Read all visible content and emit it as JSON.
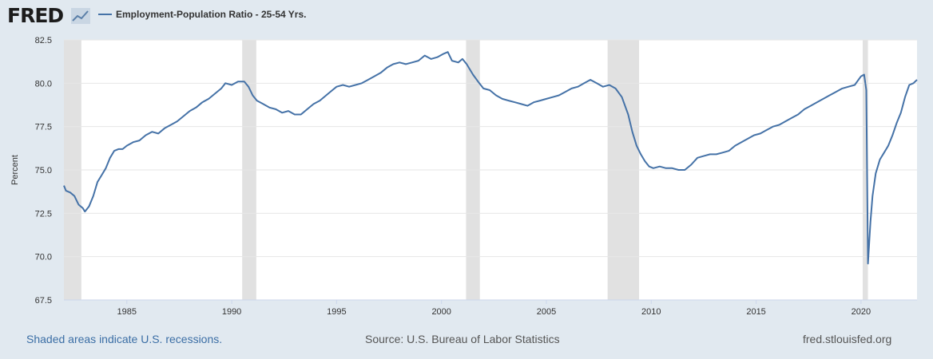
{
  "header": {
    "logo_text": "FRED",
    "legend_label": "Employment-Population Ratio - 25-54 Yrs."
  },
  "footer": {
    "recession_note": "Shaded areas indicate U.S. recessions.",
    "source": "Source: U.S. Bureau of Labor Statistics",
    "site": "fred.stlouisfed.org"
  },
  "colors": {
    "series": "#4572a7",
    "recession": "#e1e1e1",
    "background": "#e1e9f0",
    "plot": "#ffffff",
    "grid": "#e6e6e6"
  },
  "chart_data": {
    "type": "line",
    "title": "",
    "xlabel": "",
    "ylabel": "Percent",
    "xlim": [
      1982.0,
      2022.67
    ],
    "ylim": [
      67.5,
      82.5
    ],
    "x_ticks": [
      1985,
      1990,
      1995,
      2000,
      2005,
      2010,
      2015,
      2020
    ],
    "y_ticks": [
      67.5,
      70.0,
      72.5,
      75.0,
      77.5,
      80.0,
      82.5
    ],
    "grid": true,
    "legend": "top-left",
    "recessions": [
      [
        1982.0,
        1982.83
      ],
      [
        1990.5,
        1991.17
      ],
      [
        2001.17,
        2001.83
      ],
      [
        2007.92,
        2009.42
      ],
      [
        2020.08,
        2020.33
      ]
    ],
    "series": [
      {
        "name": "Employment-Population Ratio - 25-54 Yrs.",
        "points": [
          [
            1982.0,
            74.1
          ],
          [
            1982.1,
            73.8
          ],
          [
            1982.3,
            73.7
          ],
          [
            1982.5,
            73.5
          ],
          [
            1982.7,
            73.0
          ],
          [
            1982.9,
            72.8
          ],
          [
            1983.0,
            72.6
          ],
          [
            1983.2,
            72.9
          ],
          [
            1983.4,
            73.5
          ],
          [
            1983.6,
            74.3
          ],
          [
            1983.8,
            74.7
          ],
          [
            1984.0,
            75.1
          ],
          [
            1984.2,
            75.7
          ],
          [
            1984.4,
            76.1
          ],
          [
            1984.6,
            76.2
          ],
          [
            1984.8,
            76.2
          ],
          [
            1985.0,
            76.4
          ],
          [
            1985.3,
            76.6
          ],
          [
            1985.6,
            76.7
          ],
          [
            1985.9,
            77.0
          ],
          [
            1986.2,
            77.2
          ],
          [
            1986.5,
            77.1
          ],
          [
            1986.8,
            77.4
          ],
          [
            1987.1,
            77.6
          ],
          [
            1987.4,
            77.8
          ],
          [
            1987.7,
            78.1
          ],
          [
            1988.0,
            78.4
          ],
          [
            1988.3,
            78.6
          ],
          [
            1988.6,
            78.9
          ],
          [
            1988.9,
            79.1
          ],
          [
            1989.2,
            79.4
          ],
          [
            1989.5,
            79.7
          ],
          [
            1989.7,
            80.0
          ],
          [
            1990.0,
            79.9
          ],
          [
            1990.3,
            80.1
          ],
          [
            1990.6,
            80.1
          ],
          [
            1990.8,
            79.8
          ],
          [
            1991.0,
            79.3
          ],
          [
            1991.2,
            79.0
          ],
          [
            1991.5,
            78.8
          ],
          [
            1991.8,
            78.6
          ],
          [
            1992.1,
            78.5
          ],
          [
            1992.4,
            78.3
          ],
          [
            1992.7,
            78.4
          ],
          [
            1993.0,
            78.2
          ],
          [
            1993.3,
            78.2
          ],
          [
            1993.6,
            78.5
          ],
          [
            1993.9,
            78.8
          ],
          [
            1994.2,
            79.0
          ],
          [
            1994.5,
            79.3
          ],
          [
            1994.8,
            79.6
          ],
          [
            1995.0,
            79.8
          ],
          [
            1995.3,
            79.9
          ],
          [
            1995.6,
            79.8
          ],
          [
            1995.9,
            79.9
          ],
          [
            1996.2,
            80.0
          ],
          [
            1996.5,
            80.2
          ],
          [
            1996.8,
            80.4
          ],
          [
            1997.1,
            80.6
          ],
          [
            1997.4,
            80.9
          ],
          [
            1997.7,
            81.1
          ],
          [
            1998.0,
            81.2
          ],
          [
            1998.3,
            81.1
          ],
          [
            1998.6,
            81.2
          ],
          [
            1998.9,
            81.3
          ],
          [
            1999.2,
            81.6
          ],
          [
            1999.5,
            81.4
          ],
          [
            1999.8,
            81.5
          ],
          [
            2000.1,
            81.7
          ],
          [
            2000.3,
            81.8
          ],
          [
            2000.5,
            81.3
          ],
          [
            2000.8,
            81.2
          ],
          [
            2001.0,
            81.4
          ],
          [
            2001.2,
            81.1
          ],
          [
            2001.5,
            80.5
          ],
          [
            2001.8,
            80.0
          ],
          [
            2002.0,
            79.7
          ],
          [
            2002.3,
            79.6
          ],
          [
            2002.6,
            79.3
          ],
          [
            2002.9,
            79.1
          ],
          [
            2003.2,
            79.0
          ],
          [
            2003.5,
            78.9
          ],
          [
            2003.8,
            78.8
          ],
          [
            2004.1,
            78.7
          ],
          [
            2004.4,
            78.9
          ],
          [
            2004.7,
            79.0
          ],
          [
            2005.0,
            79.1
          ],
          [
            2005.3,
            79.2
          ],
          [
            2005.6,
            79.3
          ],
          [
            2005.9,
            79.5
          ],
          [
            2006.2,
            79.7
          ],
          [
            2006.5,
            79.8
          ],
          [
            2006.8,
            80.0
          ],
          [
            2007.1,
            80.2
          ],
          [
            2007.4,
            80.0
          ],
          [
            2007.7,
            79.8
          ],
          [
            2008.0,
            79.9
          ],
          [
            2008.3,
            79.7
          ],
          [
            2008.6,
            79.2
          ],
          [
            2008.9,
            78.2
          ],
          [
            2009.1,
            77.2
          ],
          [
            2009.3,
            76.4
          ],
          [
            2009.5,
            75.9
          ],
          [
            2009.7,
            75.5
          ],
          [
            2009.9,
            75.2
          ],
          [
            2010.1,
            75.1
          ],
          [
            2010.4,
            75.2
          ],
          [
            2010.7,
            75.1
          ],
          [
            2011.0,
            75.1
          ],
          [
            2011.3,
            75.0
          ],
          [
            2011.6,
            75.0
          ],
          [
            2011.9,
            75.3
          ],
          [
            2012.2,
            75.7
          ],
          [
            2012.5,
            75.8
          ],
          [
            2012.8,
            75.9
          ],
          [
            2013.1,
            75.9
          ],
          [
            2013.4,
            76.0
          ],
          [
            2013.7,
            76.1
          ],
          [
            2014.0,
            76.4
          ],
          [
            2014.3,
            76.6
          ],
          [
            2014.6,
            76.8
          ],
          [
            2014.9,
            77.0
          ],
          [
            2015.2,
            77.1
          ],
          [
            2015.5,
            77.3
          ],
          [
            2015.8,
            77.5
          ],
          [
            2016.1,
            77.6
          ],
          [
            2016.4,
            77.8
          ],
          [
            2016.7,
            78.0
          ],
          [
            2017.0,
            78.2
          ],
          [
            2017.3,
            78.5
          ],
          [
            2017.6,
            78.7
          ],
          [
            2017.9,
            78.9
          ],
          [
            2018.2,
            79.1
          ],
          [
            2018.5,
            79.3
          ],
          [
            2018.8,
            79.5
          ],
          [
            2019.1,
            79.7
          ],
          [
            2019.4,
            79.8
          ],
          [
            2019.7,
            79.9
          ],
          [
            2020.0,
            80.4
          ],
          [
            2020.15,
            80.5
          ],
          [
            2020.25,
            79.6
          ],
          [
            2020.33,
            69.6
          ],
          [
            2020.45,
            72.0
          ],
          [
            2020.55,
            73.5
          ],
          [
            2020.7,
            74.8
          ],
          [
            2020.9,
            75.6
          ],
          [
            2021.1,
            76.0
          ],
          [
            2021.3,
            76.4
          ],
          [
            2021.5,
            77.0
          ],
          [
            2021.7,
            77.7
          ],
          [
            2021.9,
            78.3
          ],
          [
            2022.1,
            79.2
          ],
          [
            2022.3,
            79.9
          ],
          [
            2022.5,
            80.0
          ],
          [
            2022.67,
            80.2
          ]
        ]
      }
    ]
  }
}
